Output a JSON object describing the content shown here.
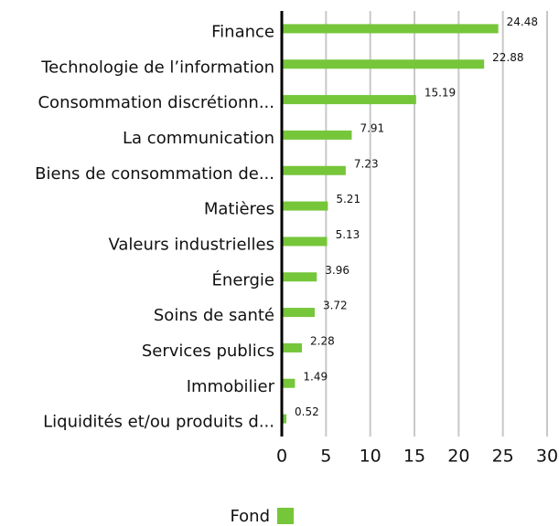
{
  "chart_data": {
    "type": "bar",
    "orientation": "horizontal",
    "categories": [
      "Finance",
      "Technologie de l’information",
      "Consommation discrétionn...",
      "La communication",
      "Biens de consommation de...",
      "Matières",
      "Valeurs industrielles",
      "Énergie",
      "Soins de santé",
      "Services publics",
      "Immobilier",
      "Liquidités et/ou produits d..."
    ],
    "series": [
      {
        "name": "Fond",
        "color": "#76c63a",
        "values": [
          24.48,
          22.88,
          15.19,
          7.91,
          7.23,
          5.21,
          5.13,
          3.96,
          3.72,
          2.28,
          1.49,
          0.52
        ]
      }
    ],
    "xlim": [
      0,
      30
    ],
    "xticks": [
      0,
      5,
      10,
      15,
      20,
      25,
      30
    ],
    "grid": true,
    "legend": "bottom"
  }
}
